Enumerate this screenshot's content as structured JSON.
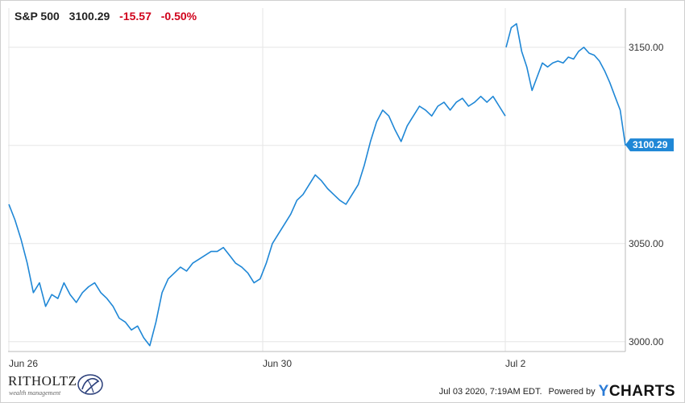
{
  "header": {
    "symbol": "S&P 500",
    "price": "3100.29",
    "change": "-15.57",
    "change_pct": "-0.50%"
  },
  "colors": {
    "line": "#1f87d6",
    "negative": "#d0021b",
    "grid": "#e6e6e6",
    "badge": "#1f87d6"
  },
  "chart_data": {
    "type": "line",
    "x_ticks": [
      "Jun 26",
      "Jun 30",
      "Jul 2"
    ],
    "y_ticks": [
      "3000.00",
      "3050.00",
      "3150.00"
    ],
    "ylim": [
      2995,
      3170
    ],
    "last_value_label": "3100.29",
    "grid": true,
    "series": [
      {
        "values": [
          3070,
          3062,
          3052,
          3040,
          3025,
          3030,
          3018,
          3024,
          3022,
          3030,
          3024,
          3020,
          3025,
          3028,
          3030,
          3025,
          3022,
          3018,
          3012,
          3010,
          3006,
          3008,
          3002,
          2998,
          3010,
          3025,
          3032,
          3035,
          3038,
          3036,
          3040,
          3042,
          3044,
          3046,
          3046,
          3048,
          3044,
          3040,
          3038,
          3035,
          3030,
          3032,
          3040,
          3050,
          3055,
          3060,
          3065,
          3072,
          3075,
          3080,
          3085,
          3082,
          3078,
          3075,
          3072,
          3070,
          3075,
          3080,
          3090,
          3102,
          3112,
          3118,
          3115,
          3108,
          3102,
          3110,
          3115,
          3120,
          3118,
          3115,
          3120,
          3122,
          3118,
          3122,
          3124,
          3120,
          3122,
          3125,
          3122,
          3125,
          3120,
          3115
        ]
      },
      {
        "values": [
          3150,
          3160,
          3162,
          3148,
          3140,
          3128,
          3135,
          3142,
          3140,
          3142,
          3143,
          3142,
          3145,
          3144,
          3148,
          3150,
          3147,
          3146,
          3143,
          3138,
          3132,
          3125,
          3118,
          3100
        ]
      }
    ]
  },
  "footer": {
    "logo": "RITHOLTZ",
    "logo_sub": "wealth management",
    "timestamp": "Jul 03 2020, 7:19AM EDT.",
    "powered_by": "Powered by",
    "brand": "CHARTS",
    "brand_prefix": "Y"
  }
}
